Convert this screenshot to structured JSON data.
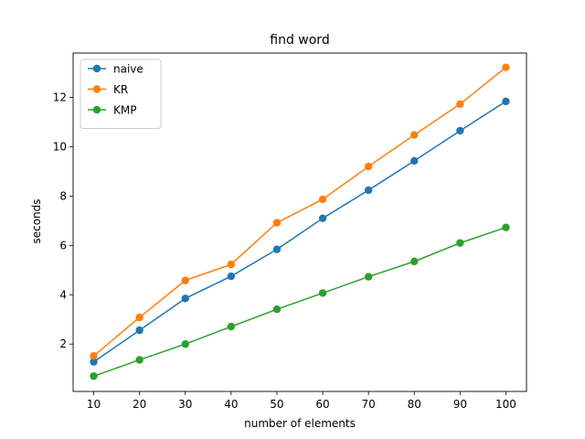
{
  "chart_data": {
    "type": "line",
    "title": "find word",
    "xlabel": "number of elements",
    "ylabel": "seconds",
    "x": [
      10,
      20,
      30,
      40,
      50,
      60,
      70,
      80,
      90,
      100
    ],
    "xticks": [
      10,
      20,
      30,
      40,
      50,
      60,
      70,
      80,
      90,
      100
    ],
    "yticks": [
      2,
      4,
      6,
      8,
      10,
      12
    ],
    "xlim": [
      5.5,
      104.5
    ],
    "ylim": [
      0.08,
      13.8
    ],
    "grid": false,
    "legend": "upper-left",
    "series": [
      {
        "name": "naive",
        "color": "#1f77b4",
        "values": [
          1.28,
          2.56,
          3.85,
          4.75,
          5.84,
          7.1,
          8.24,
          9.43,
          10.65,
          11.84
        ]
      },
      {
        "name": "KR",
        "color": "#ff7f0e",
        "values": [
          1.52,
          3.08,
          4.58,
          5.23,
          6.92,
          7.87,
          9.2,
          10.48,
          11.73,
          13.22
        ]
      },
      {
        "name": "KMP",
        "color": "#2ca02c",
        "values": [
          0.7,
          1.36,
          2.0,
          2.71,
          3.41,
          4.07,
          4.73,
          5.35,
          6.1,
          6.73
        ]
      }
    ]
  }
}
